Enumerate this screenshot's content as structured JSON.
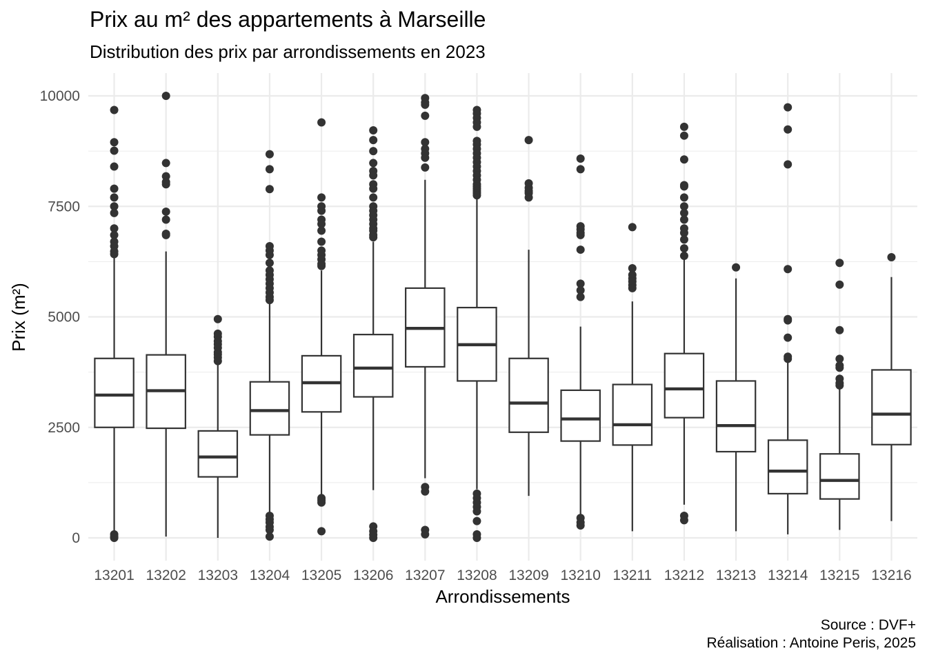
{
  "title": "Prix au m² des appartements à Marseille",
  "subtitle": "Distribution des prix par arrondissements en 2023",
  "caption_line1": "Source : DVF+",
  "caption_line2": "Réalisation : Antoine Peris, 2025",
  "chart_data": {
    "type": "boxplot",
    "xlabel": "Arrondissements",
    "ylabel": "Prix (m²)",
    "ylim": [
      -250,
      10150
    ],
    "yticks": [
      0,
      2500,
      5000,
      7500,
      10000
    ],
    "grid": true,
    "box_color": "#333333",
    "categories": [
      "13201",
      "13202",
      "13203",
      "13204",
      "13205",
      "13206",
      "13207",
      "13208",
      "13209",
      "13210",
      "13211",
      "13212",
      "13213",
      "13214",
      "13215",
      "13216"
    ],
    "boxes": [
      {
        "category": "13201",
        "whisker_low": 150,
        "q1": 2500,
        "median": 3230,
        "q3": 4060,
        "whisker_high": 6380,
        "outliers": [
          9680,
          8950,
          8760,
          8400,
          7900,
          7700,
          7500,
          7350,
          7000,
          6850,
          6700,
          6600,
          6480,
          6420,
          80,
          30,
          0
        ]
      },
      {
        "category": "13202",
        "whisker_low": 30,
        "q1": 2480,
        "median": 3330,
        "q3": 4140,
        "whisker_high": 6480,
        "outliers": [
          10000,
          8480,
          8180,
          8050,
          8000,
          7380,
          7200,
          6880,
          6850
        ]
      },
      {
        "category": "13203",
        "whisker_low": 0,
        "q1": 1380,
        "median": 1830,
        "q3": 2420,
        "whisker_high": 3950,
        "outliers": [
          4950,
          4620,
          4550,
          4450,
          4380,
          4300,
          4200,
          4150,
          4080,
          4000
        ]
      },
      {
        "category": "13204",
        "whisker_low": 550,
        "q1": 2330,
        "median": 2880,
        "q3": 3530,
        "whisker_high": 5300,
        "outliers": [
          8680,
          8340,
          7890,
          6600,
          6500,
          6400,
          6220,
          6050,
          5950,
          5850,
          5750,
          5650,
          5550,
          5450,
          5380,
          500,
          420,
          350,
          250,
          180,
          30
        ]
      },
      {
        "category": "13205",
        "whisker_low": 950,
        "q1": 2850,
        "median": 3510,
        "q3": 4120,
        "whisker_high": 6050,
        "outliers": [
          9400,
          7700,
          7500,
          7400,
          7200,
          7100,
          6950,
          6700,
          6500,
          6400,
          6300,
          6200,
          6150,
          900,
          850,
          800,
          150
        ]
      },
      {
        "category": "13206",
        "whisker_low": 1080,
        "q1": 3190,
        "median": 3840,
        "q3": 4600,
        "whisker_high": 6700,
        "outliers": [
          9220,
          9000,
          8750,
          8480,
          8300,
          8200,
          8000,
          7900,
          7700,
          7500,
          7400,
          7300,
          7200,
          7100,
          7000,
          6950,
          6850,
          6800,
          260,
          150,
          70,
          0
        ]
      },
      {
        "category": "13207",
        "whisker_low": 1350,
        "q1": 3870,
        "median": 4740,
        "q3": 5650,
        "whisker_high": 8100,
        "outliers": [
          9950,
          9850,
          9800,
          9550,
          8950,
          8800,
          8700,
          8600,
          8380,
          1150,
          1050,
          180,
          80
        ]
      },
      {
        "category": "13208",
        "whisker_low": 1100,
        "q1": 3550,
        "median": 4370,
        "q3": 5210,
        "whisker_high": 7750,
        "outliers": [
          9680,
          9600,
          9500,
          9400,
          9300,
          8980,
          8900,
          8800,
          8700,
          8600,
          8500,
          8400,
          8300,
          8200,
          8100,
          8000,
          7950,
          7900,
          7850,
          7800,
          7750,
          1000,
          900,
          800,
          700,
          600,
          380,
          80,
          0
        ]
      },
      {
        "category": "13209",
        "whisker_low": 950,
        "q1": 2390,
        "median": 3050,
        "q3": 4060,
        "whisker_high": 6520,
        "outliers": [
          9000,
          8020,
          7920,
          7850,
          7800,
          7700
        ]
      },
      {
        "category": "13210",
        "whisker_low": 500,
        "q1": 2190,
        "median": 2690,
        "q3": 3340,
        "whisker_high": 4780,
        "outliers": [
          8580,
          8340,
          7050,
          6980,
          6900,
          6850,
          6520,
          5750,
          5600,
          5450,
          450,
          350,
          280
        ]
      },
      {
        "category": "13211",
        "whisker_low": 150,
        "q1": 2100,
        "median": 2560,
        "q3": 3470,
        "whisker_high": 5350,
        "outliers": [
          7030,
          6100,
          5950,
          5870,
          5800,
          5720,
          5650
        ]
      },
      {
        "category": "13212",
        "whisker_low": 750,
        "q1": 2720,
        "median": 3370,
        "q3": 4170,
        "whisker_high": 6300,
        "outliers": [
          9300,
          9100,
          8560,
          7980,
          7950,
          7700,
          7500,
          7350,
          7200,
          7000,
          6900,
          6750,
          6550,
          6380,
          500,
          400
        ]
      },
      {
        "category": "13213",
        "whisker_low": 150,
        "q1": 1950,
        "median": 2540,
        "q3": 3550,
        "whisker_high": 5870,
        "outliers": [
          6120
        ]
      },
      {
        "category": "13214",
        "whisker_low": 80,
        "q1": 1000,
        "median": 1510,
        "q3": 2210,
        "whisker_high": 4000,
        "outliers": [
          9740,
          9240,
          8450,
          6080,
          4950,
          4920,
          4530,
          4100,
          4050
        ]
      },
      {
        "category": "13215",
        "whisker_low": 180,
        "q1": 880,
        "median": 1300,
        "q3": 1900,
        "whisker_high": 3400,
        "outliers": [
          6220,
          5730,
          4700,
          4050,
          3900,
          3850,
          3600,
          3500,
          3450
        ]
      },
      {
        "category": "13216",
        "whisker_low": 380,
        "q1": 2110,
        "median": 2800,
        "q3": 3800,
        "whisker_high": 5900,
        "outliers": [
          6350
        ]
      }
    ]
  }
}
